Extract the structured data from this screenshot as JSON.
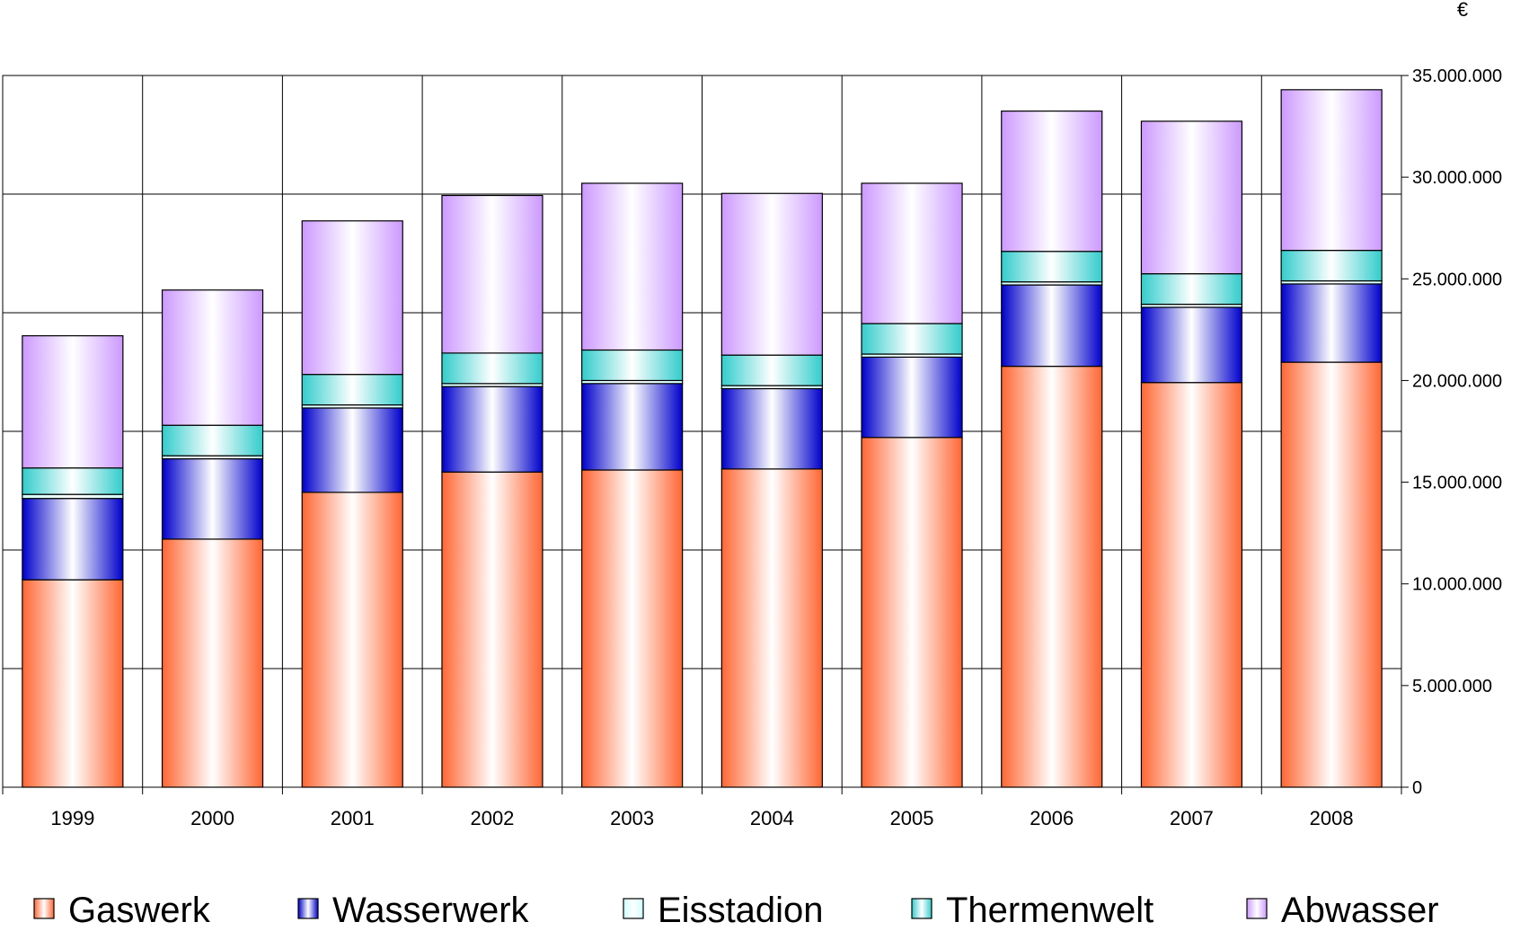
{
  "chart_data": {
    "type": "bar",
    "stacked": true,
    "unit_label": "€",
    "categories": [
      "1999",
      "2000",
      "2001",
      "2002",
      "2003",
      "2004",
      "2005",
      "2006",
      "2007",
      "2008"
    ],
    "ylim": [
      0,
      35000000
    ],
    "y_ticks": [
      0,
      5000000,
      10000000,
      15000000,
      20000000,
      25000000,
      30000000,
      35000000
    ],
    "y_tick_labels": [
      "0",
      "5.000.000",
      "10.000.000",
      "15.000.000",
      "20.000.000",
      "25.000.000",
      "30.000.000",
      "35.000.000"
    ],
    "y_axis_side": "right",
    "grid": true,
    "legend_position": "bottom",
    "series": [
      {
        "name": "Gaswerk",
        "color": "#ff6633",
        "values": [
          10200000,
          12200000,
          14500000,
          15500000,
          15600000,
          15650000,
          17200000,
          20700000,
          19900000,
          20900000
        ]
      },
      {
        "name": "Wasserwerk",
        "color": "#0000cc",
        "values": [
          4000000,
          3950000,
          4150000,
          4200000,
          4250000,
          3950000,
          3950000,
          4000000,
          3700000,
          3850000
        ]
      },
      {
        "name": "Eisstadion",
        "color": "#ccffff",
        "values": [
          200000,
          150000,
          150000,
          150000,
          150000,
          150000,
          150000,
          150000,
          150000,
          150000
        ]
      },
      {
        "name": "Thermenwelt",
        "color": "#33cccc",
        "values": [
          1300000,
          1500000,
          1500000,
          1500000,
          1500000,
          1500000,
          1500000,
          1500000,
          1500000,
          1500000
        ]
      },
      {
        "name": "Abwasser",
        "color": "#cc99ff",
        "values": [
          6500000,
          6650000,
          7550000,
          7750000,
          8200000,
          7950000,
          6900000,
          6900000,
          7500000,
          7900000
        ]
      }
    ]
  }
}
